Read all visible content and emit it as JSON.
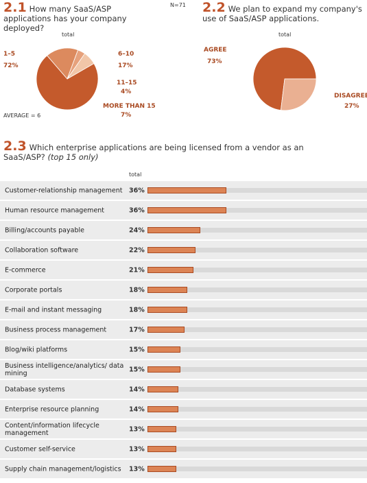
{
  "chart_data": [
    {
      "type": "pie",
      "number": "2.1",
      "title": "How many SaaS/ASP applications has your company deployed?",
      "subtitle": "total",
      "note": "N=71",
      "annotation": "AVERAGE = 6",
      "categories": [
        "1–5",
        "6–10",
        "11–15",
        "MORE THAN 15"
      ],
      "values": [
        72,
        17,
        4,
        7
      ],
      "value_labels": [
        "72%",
        "17%",
        "4%",
        "7%"
      ],
      "colors": [
        "#c45a2c",
        "#dc8a5e",
        "#e6a17c",
        "#f1c6a8"
      ]
    },
    {
      "type": "pie",
      "number": "2.2",
      "title": "We plan to expand my company's use of SaaS/ASP applications.",
      "subtitle": "total",
      "categories": [
        "AGREE",
        "DISAGREE"
      ],
      "values": [
        73,
        27
      ],
      "value_labels": [
        "73%",
        "27%"
      ],
      "colors": [
        "#c45a2c",
        "#eab092"
      ]
    },
    {
      "type": "bar",
      "number": "2.3",
      "title": "Which enterprise applications are being licensed from a vendor as an SaaS/ASP?",
      "title_note": "(top 15 only)",
      "subtitle": "total",
      "categories": [
        "Customer-relationship management",
        "Human resource management",
        "Billing/accounts payable",
        "Collaboration software",
        "E-commerce",
        "Corporate portals",
        "E-mail and instant messaging",
        "Business process management",
        "Blog/wiki platforms",
        "Business intelligence/analytics/ data mining",
        "Database systems",
        "Enterprise resource planning",
        "Content/information lifecycle management",
        "Customer self-service",
        "Supply chain management/logistics"
      ],
      "values": [
        36,
        36,
        24,
        22,
        21,
        18,
        18,
        17,
        15,
        15,
        14,
        14,
        13,
        13,
        13
      ],
      "value_labels": [
        "36%",
        "36%",
        "24%",
        "22%",
        "21%",
        "18%",
        "18%",
        "17%",
        "15%",
        "15%",
        "14%",
        "14%",
        "13%",
        "13%",
        "13%"
      ],
      "xlim": [
        0,
        100
      ],
      "color": "#dc8455"
    }
  ]
}
